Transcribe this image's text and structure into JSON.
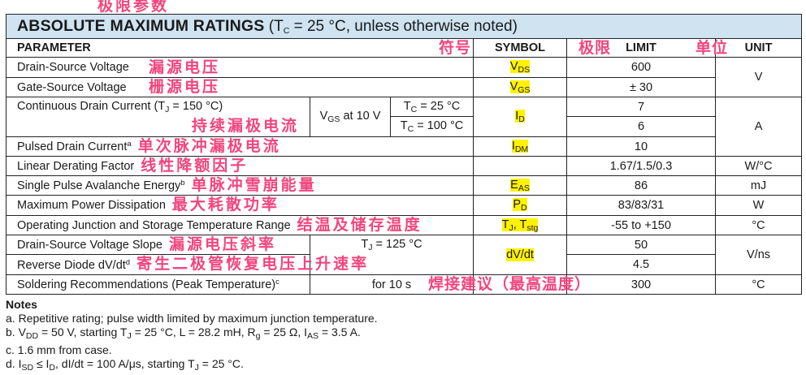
{
  "title": {
    "bold": "ABSOLUTE MAXIMUM RATINGS",
    "cond_open": " (T",
    "cond_sub": "C",
    "cond_rest": " = 25 °C, unless otherwise noted)"
  },
  "headers": {
    "parameter": "PARAMETER",
    "symbol": "SYMBOL",
    "limit": "LIMIT",
    "unit": "UNIT"
  },
  "rows": {
    "vds": {
      "param": "Drain-Source Voltage",
      "sym": "V",
      "sym_sub": "DS",
      "limit": "600"
    },
    "vgs": {
      "param": "Gate-Source Voltage",
      "sym": "V",
      "sym_sub": "GS",
      "limit": "± 30"
    },
    "unit_v": "V",
    "id": {
      "param": "Continuous Drain Current (T",
      "param_sub": "J",
      "param_rest": " = 150 °C)",
      "cond": "V",
      "cond_sub": "GS",
      "cond_rest": " at 10 V",
      "tc1": "T",
      "tc1_sub": "C",
      "tc1_rest": " = 25 °C",
      "tc2": "T",
      "tc2_sub": "C",
      "tc2_rest": " = 100 °C",
      "sym": "I",
      "sym_sub": "D",
      "limit1": "7",
      "limit2": "6"
    },
    "idm": {
      "param": "Pulsed Drain Current",
      "note": "a",
      "sym": "I",
      "sym_sub": "DM",
      "limit": "10"
    },
    "unit_a": "A",
    "ldf": {
      "param": "Linear Derating Factor",
      "limit": "1.67/1.5/0.3",
      "unit": "W/°C"
    },
    "eas": {
      "param": "Single Pulse Avalanche Energy",
      "note": "b",
      "sym": "E",
      "sym_sub": "AS",
      "limit": "86",
      "unit": "mJ"
    },
    "pd": {
      "param": "Maximum Power Dissipation",
      "sym": "P",
      "sym_sub": "D",
      "limit": "83/83/31",
      "unit": "W"
    },
    "tj": {
      "param": "Operating Junction and Storage Temperature Range",
      "sym": "T",
      "sym_sub": "J",
      "sym_mid": ", T",
      "sym_sub2": "stg",
      "limit": "-55 to +150",
      "unit": "°C"
    },
    "dvdt": {
      "param1": "Drain-Source Voltage Slope",
      "cond": "T",
      "cond_sub": "J",
      "cond_rest": " = 125 °C",
      "param2": "Reverse Diode dV/dt",
      "note2": "d",
      "sym": "dV/dt",
      "limit1": "50",
      "limit2": "4.5",
      "unit": "V/ns"
    },
    "solder": {
      "param": "Soldering Recommendations (Peak Temperature)",
      "note": "c",
      "cond": "for 10 s",
      "limit": "300",
      "unit": "°C"
    }
  },
  "annotations": {
    "title": "极限参数",
    "symbol": "符号",
    "limit": "极限",
    "unit": "单位",
    "vds": "漏源电压",
    "vgs": "栅源电压",
    "id": "持续漏极电流",
    "idm": "单次脉冲漏极电流",
    "ldf": "线性降额因子",
    "eas": "单脉冲雪崩能量",
    "pd": "最大耗散功率",
    "tj": "结温及储存温度",
    "slope": "漏源电压斜率",
    "diode": "寄生二极管恢复电压上升速率",
    "solder": "焊接建议（最高温度）"
  },
  "notes": {
    "heading": "Notes",
    "a": "a.  Repetitive rating; pulse width limited by maximum junction temperature.",
    "b": {
      "pre": "b.  V",
      "s1": "DD",
      "t1": " = 50 V, starting T",
      "s2": "J",
      "t2": " = 25 °C, L = 28.2 mH, R",
      "s3": "g",
      "t3": " = 25 Ω, I",
      "s4": "AS",
      "t4": " = 3.5 A."
    },
    "c": "c.  1.6 mm from case.",
    "d": {
      "pre": "d.  I",
      "s1": "SD",
      "t1": " ≤ I",
      "s2": "D",
      "t2": ", dI/dt = 100 A/μs, starting T",
      "s3": "J",
      "t3": " = 25 °C."
    }
  },
  "colors": {
    "title_bg": "#cfe3f1",
    "highlight": "#fff200",
    "annotation": "#f2457d"
  }
}
